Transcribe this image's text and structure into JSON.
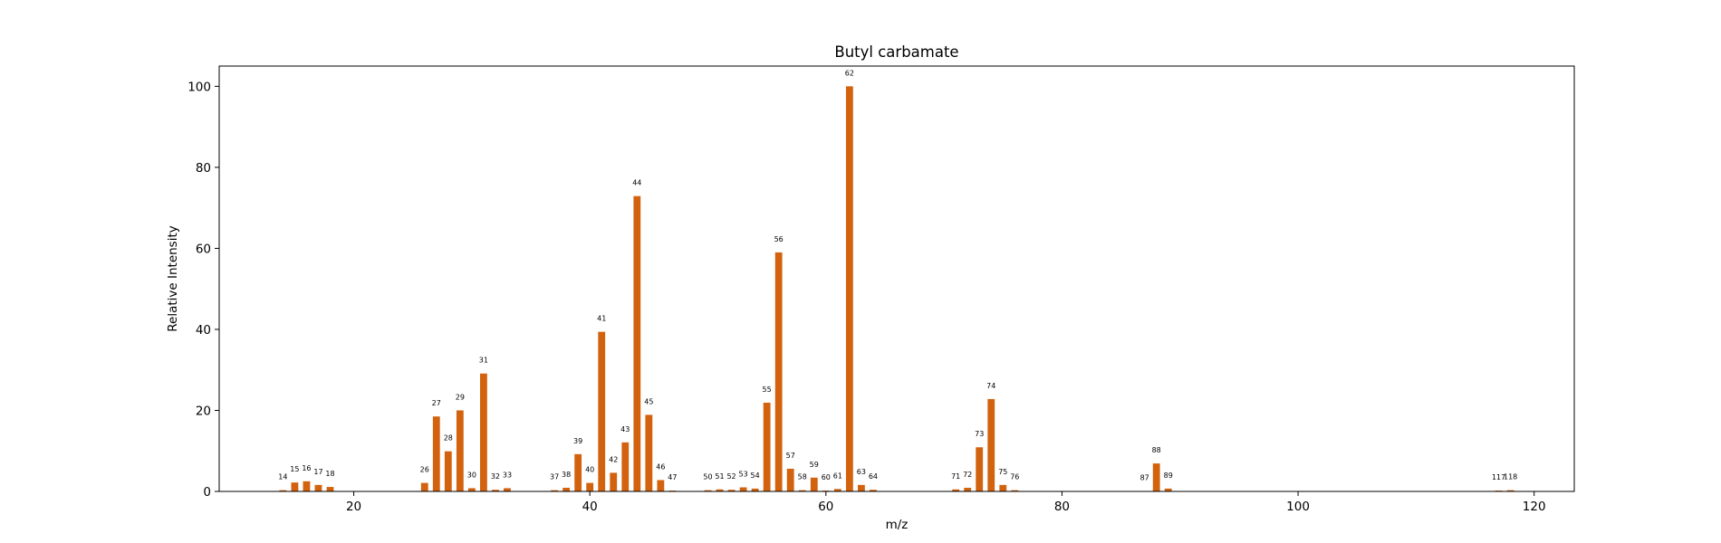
{
  "chart_data": {
    "type": "bar",
    "title": "Butyl carbamate",
    "xlabel": "m/z",
    "ylabel": "Relative Intensity",
    "xlim": [
      8.6,
      123.4
    ],
    "ylim": [
      0,
      105
    ],
    "xticks": [
      20,
      40,
      60,
      80,
      100,
      120
    ],
    "yticks": [
      0,
      20,
      40,
      60,
      80,
      100
    ],
    "grid": false,
    "bar_color": "#d2620e",
    "x": [
      14,
      15,
      16,
      17,
      18,
      26,
      27,
      28,
      29,
      30,
      31,
      32,
      33,
      37,
      38,
      39,
      40,
      41,
      42,
      43,
      44,
      45,
      46,
      47,
      50,
      51,
      52,
      53,
      54,
      55,
      56,
      57,
      58,
      59,
      60,
      61,
      62,
      63,
      64,
      71,
      72,
      73,
      74,
      75,
      76,
      87,
      88,
      89,
      117,
      118
    ],
    "values": [
      0.3,
      2.2,
      2.5,
      1.6,
      1.1,
      2.1,
      18.5,
      9.9,
      20.0,
      0.8,
      29.1,
      0.4,
      0.8,
      0.3,
      0.9,
      9.2,
      2.1,
      39.4,
      4.6,
      12.1,
      72.9,
      18.9,
      2.8,
      0.2,
      0.3,
      0.5,
      0.4,
      1.0,
      0.7,
      21.9,
      59.0,
      5.6,
      0.3,
      3.4,
      0.2,
      0.6,
      100.0,
      1.6,
      0.4,
      0.5,
      0.9,
      10.9,
      22.8,
      1.6,
      0.3,
      0.1,
      6.9,
      0.7,
      0.2,
      0.3
    ]
  }
}
